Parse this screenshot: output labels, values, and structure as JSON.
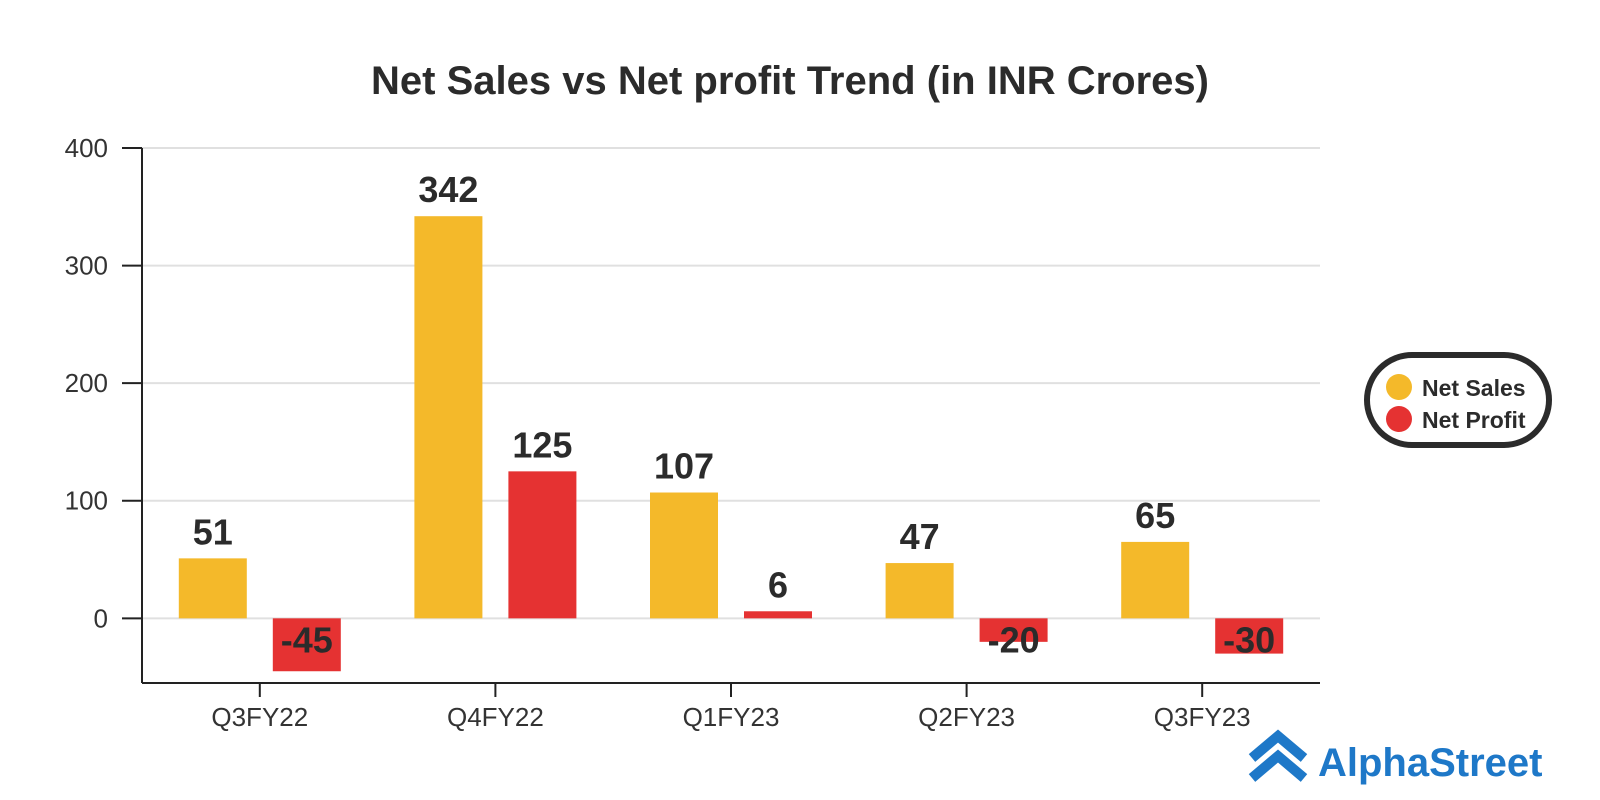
{
  "colors": {
    "net_sales": "#F4B92A",
    "net_profit": "#E53232",
    "brand": "#1E78C8",
    "grid": "#e0e0e0",
    "axis": "#222222"
  },
  "brand": {
    "name": "AlphaStreet",
    "icon": "alphastreet-logo-icon"
  },
  "chart_data": {
    "type": "bar",
    "title": "Net Sales vs Net profit Trend (in INR Crores)",
    "xlabel": "",
    "ylabel": "",
    "categories": [
      "Q3FY22",
      "Q4FY22",
      "Q1FY23",
      "Q2FY23",
      "Q3FY23"
    ],
    "series": [
      {
        "name": "Net Sales",
        "values": [
          51,
          342,
          107,
          47,
          65
        ],
        "labels": [
          "51",
          "342",
          "107",
          "47",
          "65"
        ]
      },
      {
        "name": "Net Profit",
        "values": [
          -45,
          125,
          6,
          -20,
          -30
        ],
        "labels": [
          "-45",
          "125",
          "6",
          "-20",
          "-30"
        ]
      }
    ],
    "ylim": [
      -55,
      400
    ],
    "yticks": [
      "400",
      "300",
      "200",
      "100",
      "0"
    ],
    "ytick_values": [
      400,
      300,
      200,
      100,
      0
    ],
    "grid": true,
    "legend_position": "right"
  }
}
